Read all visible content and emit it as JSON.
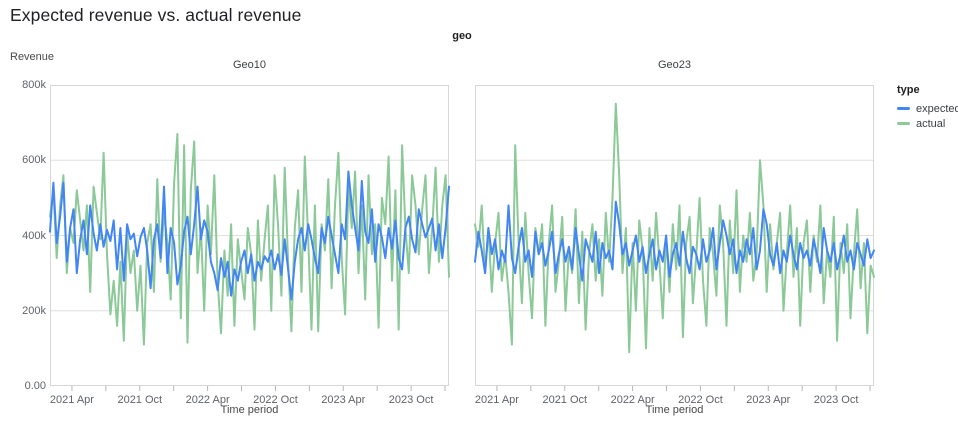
{
  "page": {
    "title": "Expected revenue vs. actual revenue"
  },
  "facet_header": "geo",
  "axes": {
    "y_title": "Revenue",
    "x_title": "Time period",
    "ylim": [
      0,
      800
    ],
    "unit": "thousands",
    "y_ticks": {
      "labels": [
        "800k",
        "600k",
        "400k",
        "200k",
        "0.00"
      ],
      "values": [
        800,
        600,
        400,
        200,
        0
      ]
    },
    "y_gridline_values": [
      600,
      400,
      200
    ],
    "x_ticks": {
      "major_labels": [
        "2021 Apr",
        "2021 Oct",
        "2022 Apr",
        "2022 Oct",
        "2023 Apr",
        "2023 Oct"
      ],
      "major_fractions": [
        0.055,
        0.225,
        0.395,
        0.565,
        0.735,
        0.905
      ],
      "minor_fractions": [
        0.14,
        0.31,
        0.48,
        0.65,
        0.82,
        0.99
      ]
    },
    "grid": "horizontal only",
    "frame_color": "#d6d6d6",
    "grid_color": "#e0e0e0",
    "tick_color": "#b5b5b5",
    "label_color": "#5f6368"
  },
  "legend": {
    "title": "type",
    "position": "top-right",
    "items": [
      {
        "label": "expected",
        "color": "#4285f4"
      },
      {
        "label": "actual",
        "color": "#8cc998"
      }
    ]
  },
  "chart_data": [
    {
      "type": "line",
      "title": "Geo10",
      "ylim": [
        0,
        800
      ],
      "unit": "thousands",
      "series": [
        {
          "name": "expected",
          "color": "#4285f4",
          "values": [
            410,
            540,
            380,
            450,
            540,
            330,
            420,
            470,
            300,
            390,
            440,
            350,
            480,
            405,
            360,
            430,
            370,
            415,
            385,
            440,
            310,
            420,
            280,
            430,
            390,
            405,
            345,
            395,
            420,
            360,
            260,
            390,
            430,
            340,
            530,
            300,
            420,
            380,
            270,
            320,
            410,
            450,
            350,
            430,
            530,
            390,
            440,
            410,
            330,
            300,
            255,
            340,
            290,
            330,
            240,
            310,
            280,
            330,
            360,
            300,
            350,
            280,
            330,
            310,
            345,
            330,
            360,
            310,
            350,
            295,
            390,
            310,
            230,
            330,
            390,
            420,
            360,
            430,
            390,
            340,
            300,
            420,
            380,
            450,
            400,
            350,
            300,
            430,
            390,
            570,
            480,
            420,
            360,
            545,
            410,
            380,
            470,
            330,
            430,
            395,
            340,
            420,
            365,
            440,
            340,
            310,
            420,
            450,
            390,
            355,
            470,
            430,
            395,
            420,
            445,
            360,
            430,
            340,
            420,
            530
          ]
        },
        {
          "name": "actual",
          "color": "#8cc998",
          "values": [
            450,
            520,
            340,
            480,
            560,
            300,
            420,
            380,
            520,
            440,
            360,
            480,
            250,
            530,
            460,
            390,
            620,
            350,
            190,
            280,
            160,
            330,
            120,
            410,
            300,
            360,
            200,
            320,
            110,
            380,
            430,
            250,
            550,
            330,
            460,
            380,
            230,
            540,
            670,
            180,
            640,
            115,
            520,
            650,
            300,
            420,
            200,
            480,
            350,
            560,
            280,
            140,
            360,
            240,
            430,
            160,
            390,
            310,
            230,
            420,
            350,
            150,
            440,
            280,
            390,
            480,
            200,
            560,
            430,
            240,
            580,
            330,
            145,
            420,
            520,
            250,
            610,
            390,
            150,
            480,
            145,
            430,
            360,
            550,
            260,
            480,
            620,
            340,
            190,
            530,
            420,
            570,
            300,
            480,
            230,
            560,
            350,
            430,
            155,
            500,
            430,
            610,
            280,
            520,
            150,
            640,
            420,
            300,
            560,
            480,
            350,
            470,
            560,
            300,
            420,
            580,
            330,
            480,
            560,
            290
          ]
        }
      ]
    },
    {
      "type": "line",
      "title": "Geo23",
      "ylim": [
        0,
        800
      ],
      "unit": "thousands",
      "series": [
        {
          "name": "expected",
          "color": "#4285f4",
          "values": [
            330,
            410,
            360,
            300,
            420,
            350,
            390,
            310,
            360,
            330,
            480,
            340,
            300,
            370,
            420,
            330,
            360,
            290,
            410,
            350,
            380,
            320,
            360,
            410,
            300,
            350,
            390,
            330,
            370,
            310,
            420,
            350,
            280,
            390,
            360,
            330,
            410,
            300,
            380,
            340,
            360,
            310,
            490,
            430,
            350,
            380,
            320,
            360,
            400,
            330,
            370,
            300,
            350,
            390,
            310,
            360,
            330,
            400,
            290,
            350,
            380,
            320,
            410,
            340,
            300,
            370,
            350,
            310,
            390,
            330,
            360,
            420,
            310,
            380,
            440,
            400,
            350,
            390,
            300,
            360,
            330,
            390,
            350,
            420,
            310,
            360,
            470,
            430,
            350,
            320,
            380,
            300,
            360,
            330,
            400,
            350,
            310,
            380,
            340,
            360,
            320,
            390,
            350,
            300,
            420,
            360,
            330,
            380,
            310,
            350,
            400,
            330,
            360,
            310,
            380,
            350,
            320,
            390,
            340,
            360
          ]
        },
        {
          "name": "actual",
          "color": "#8cc998",
          "values": [
            430,
            370,
            480,
            300,
            420,
            250,
            380,
            460,
            280,
            350,
            250,
            110,
            640,
            380,
            220,
            460,
            300,
            180,
            420,
            350,
            430,
            160,
            380,
            480,
            250,
            330,
            450,
            200,
            360,
            300,
            470,
            220,
            410,
            150,
            350,
            430,
            280,
            390,
            240,
            460,
            330,
            500,
            750,
            560,
            300,
            420,
            90,
            380,
            200,
            440,
            360,
            100,
            420,
            280,
            460,
            330,
            180,
            400,
            250,
            430,
            310,
            480,
            130,
            380,
            450,
            220,
            350,
            500,
            280,
            160,
            420,
            350,
            240,
            480,
            380,
            160,
            440,
            300,
            520,
            250,
            400,
            330,
            460,
            280,
            350,
            600,
            480,
            250,
            430,
            310,
            380,
            460,
            200,
            350,
            480,
            290,
            420,
            160,
            380,
            440,
            250,
            400,
            330,
            480,
            220,
            360,
            290,
            450,
            120,
            380,
            300,
            430,
            180,
            350,
            470,
            260,
            380,
            140,
            320,
            290
          ]
        }
      ]
    }
  ]
}
